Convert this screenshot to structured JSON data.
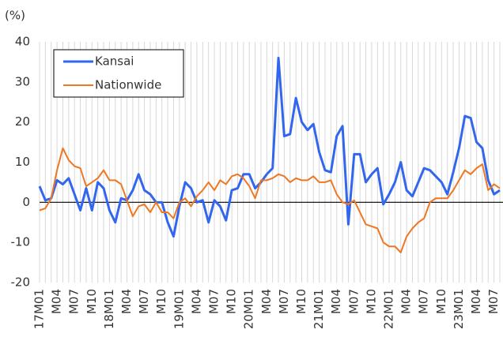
{
  "chart_data": {
    "type": "line",
    "y_label": "(%)",
    "categories": [
      "17M01",
      null,
      null,
      "M04",
      null,
      null,
      "M07",
      null,
      null,
      "M10",
      null,
      null,
      "18M01",
      null,
      null,
      "M04",
      null,
      null,
      "M07",
      null,
      null,
      "M10",
      null,
      null,
      "19M01",
      null,
      null,
      "M04",
      null,
      null,
      "M07",
      null,
      null,
      "M10",
      null,
      null,
      "20M01",
      null,
      null,
      "M04",
      null,
      null,
      "M07",
      null,
      null,
      "M10",
      null,
      null,
      "21M01",
      null,
      null,
      "M04",
      null,
      null,
      "M07",
      null,
      null,
      "M10",
      null,
      null,
      "22M01",
      null,
      null,
      "M04",
      null,
      null,
      "M07",
      null,
      null,
      "M10",
      null,
      null,
      "23M01",
      null,
      null,
      "M04",
      null,
      null,
      "M07",
      null
    ],
    "series": [
      {
        "name": "Kansai",
        "color": "#3366ee",
        "values": [
          4,
          0.5,
          1,
          5.5,
          4.5,
          6,
          2,
          -2,
          3.5,
          -2,
          5,
          3.5,
          -2,
          -5,
          1,
          0.5,
          3,
          7,
          3,
          2,
          0,
          0,
          -5,
          -8.5,
          -1,
          5,
          3.5,
          0,
          0.5,
          -5,
          0.5,
          -1,
          -4.5,
          3,
          3.5,
          7,
          7,
          3.5,
          5,
          7,
          8.5,
          36,
          16.5,
          17,
          26,
          20,
          18,
          19.5,
          12.5,
          8,
          7.5,
          16.5,
          19,
          -5.5,
          12,
          12,
          5,
          7,
          8.5,
          -0.5,
          2,
          5,
          10,
          3,
          1.5,
          5,
          8.5,
          8,
          6.5,
          5,
          2,
          7.5,
          13.5,
          21.5,
          21,
          15,
          13.5,
          5.5,
          2,
          3
        ]
      },
      {
        "name": "Nationwide",
        "color": "#ee7722",
        "values": [
          -2,
          -1.5,
          1,
          8,
          13.5,
          10.5,
          9,
          8.5,
          4,
          5,
          6,
          8,
          5.5,
          5.5,
          4.5,
          0.5,
          -3.5,
          -1,
          -0.5,
          -2.5,
          0,
          -2.5,
          -2.5,
          -4,
          0,
          1,
          -1,
          1.5,
          3,
          5,
          3,
          5.5,
          4.5,
          6.5,
          7,
          6,
          4,
          1,
          5.5,
          5.5,
          6,
          7,
          6.5,
          5,
          6,
          5.5,
          5.5,
          6.5,
          5,
          5,
          5.5,
          2,
          0,
          -0.5,
          0.5,
          -2.5,
          -5.5,
          -6,
          -6.5,
          -10,
          -11,
          -11,
          -12.5,
          -8.5,
          -6.5,
          -5,
          -4,
          0,
          1,
          1,
          1,
          3,
          5.5,
          8,
          7,
          8.5,
          9.5,
          3,
          4.5,
          3.5
        ]
      }
    ],
    "ylim": [
      -20,
      40
    ],
    "yticks": [
      -20,
      -10,
      0,
      10,
      20,
      30,
      40
    ],
    "legend": "upper left",
    "grid": true
  }
}
